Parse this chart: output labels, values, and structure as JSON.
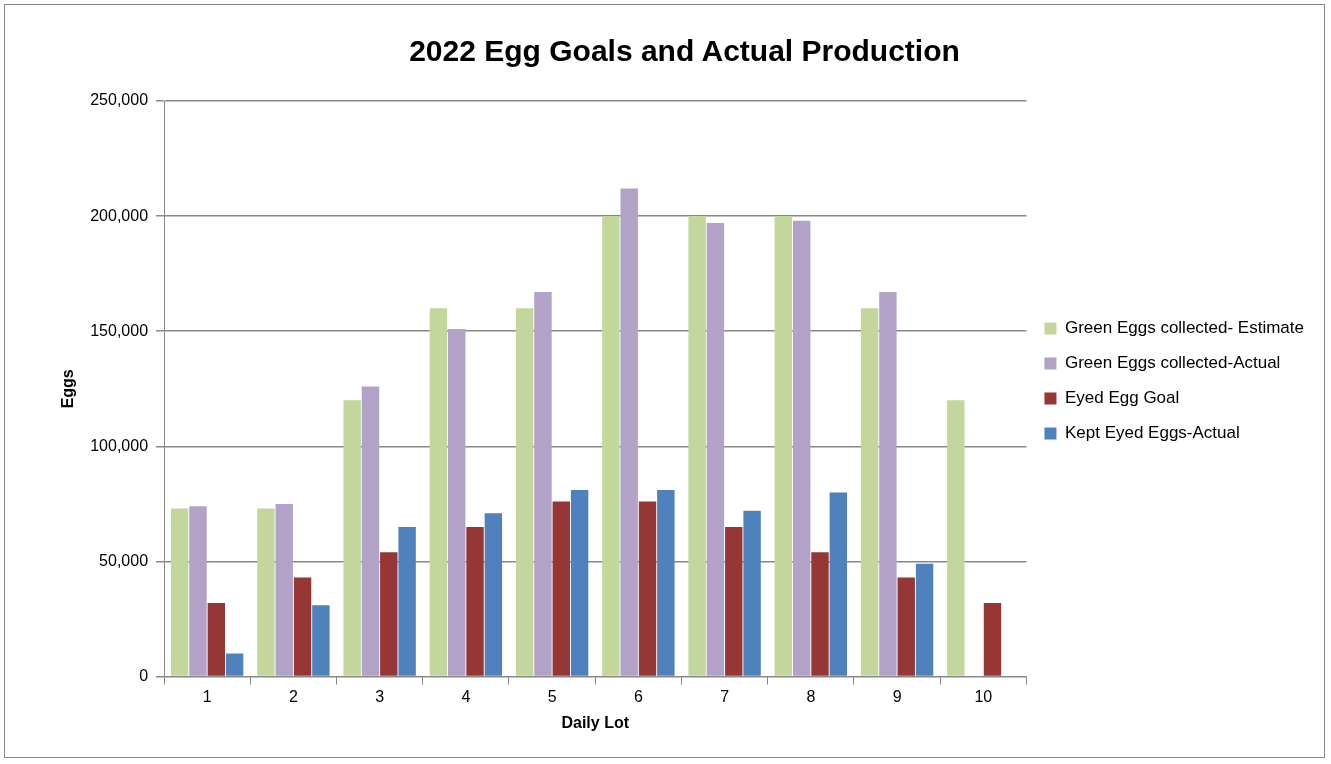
{
  "chart_data": {
    "type": "bar",
    "title": "2022 Egg Goals and Actual Production",
    "xlabel": "Daily Lot",
    "ylabel": "Eggs",
    "categories": [
      "1",
      "2",
      "3",
      "4",
      "5",
      "6",
      "7",
      "8",
      "9",
      "10"
    ],
    "series": [
      {
        "name": "Green Eggs collected- Estimate",
        "color": "#c3d69b",
        "values": [
          73000,
          73000,
          120000,
          160000,
          160000,
          200000,
          200000,
          200000,
          160000,
          120000
        ]
      },
      {
        "name": "Green Eggs collected-Actual",
        "color": "#b3a2c7",
        "values": [
          74000,
          75000,
          126000,
          151000,
          167000,
          212000,
          197000,
          198000,
          167000,
          null
        ]
      },
      {
        "name": "Eyed Egg Goal",
        "color": "#953735",
        "values": [
          32000,
          43000,
          54000,
          65000,
          76000,
          76000,
          65000,
          54000,
          43000,
          32000
        ]
      },
      {
        "name": "Kept Eyed Eggs-Actual",
        "color": "#4f81bd",
        "values": [
          10000,
          31000,
          65000,
          71000,
          81000,
          81000,
          72000,
          80000,
          49000,
          null
        ]
      }
    ],
    "ylim": [
      0,
      250000
    ],
    "yticks": [
      {
        "value": 0,
        "label": "0"
      },
      {
        "value": 50000,
        "label": "50,000"
      },
      {
        "value": 100000,
        "label": "100,000"
      },
      {
        "value": 150000,
        "label": "150,000"
      },
      {
        "value": 200000,
        "label": "200,000"
      },
      {
        "value": 250000,
        "label": "250,000"
      }
    ],
    "grid": "y",
    "legend": "right"
  }
}
